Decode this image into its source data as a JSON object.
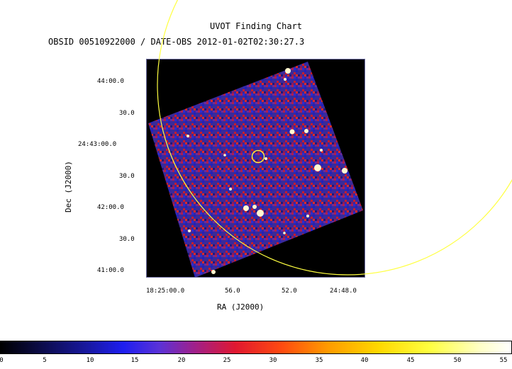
{
  "title": "UVOT Finding Chart",
  "subtitle": "OBSID 00510922000 / DATE-OBS 2012-01-02T02:30:27.3",
  "axes": {
    "xlabel": "RA (J2000)",
    "ylabel": "Dec (J2000)",
    "xticks": [
      "18:25:00.0",
      "56.0",
      "52.0",
      "24:48.0"
    ],
    "yticks": [
      "44:00.0",
      "30.0",
      "24:43:00.0",
      "30.0",
      "42:00.0",
      "30.0",
      "41:00.0"
    ]
  },
  "colorbar": {
    "ticks": [
      "0",
      "5",
      "10",
      "15",
      "20",
      "25",
      "30",
      "35",
      "40",
      "45",
      "50",
      "55"
    ]
  },
  "markers": {
    "source_circle_color": "#ffff40",
    "error_circle_color": "#ffff40"
  }
}
